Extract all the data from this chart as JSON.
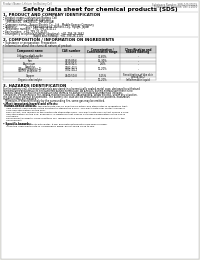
{
  "background_color": "#e8e8e4",
  "page_bg": "#ffffff",
  "header_left": "Product Name: Lithium Ion Battery Cell",
  "header_right_line1": "Substance Number: SBN-049-00019",
  "header_right_line2": "Established / Revision: Dec.1.2010",
  "title": "Safety data sheet for chemical products (SDS)",
  "section1_title": "1. PRODUCT AND COMPANY IDENTIFICATION",
  "section1_lines": [
    "• Product name: Lithium Ion Battery Cell",
    "• Product code: Cylindrical-type cell",
    "   (IHR18650U, IHR18650L, IHR18650A)",
    "• Company name:   Sanyo Electric Co., Ltd., Mobile Energy Company",
    "• Address:          2001 Kamitomisawa, Sumoto-City, Hyogo, Japan",
    "• Telephone number:  +81-799-26-4111",
    "• Fax number:  +81-799-26-4129",
    "• Emergency telephone number (daytime): +81-799-26-2662",
    "                                  (Night and holiday): +81-799-26-2101"
  ],
  "section2_title": "2. COMPOSITION / INFORMATION ON INGREDIENTS",
  "section2_intro": "• Substance or preparation: Preparation",
  "section2_sub": "• Information about the chemical nature of product:",
  "table_headers": [
    "Component name",
    "CAS number",
    "Concentration /\nConcentration range",
    "Classification and\nhazard labeling"
  ],
  "table_rows": [
    [
      "Lithium cobalt oxide\n(LiMn/Co/Ni/O4)",
      "-",
      "30-60%",
      "-"
    ],
    [
      "Iron",
      "7439-89-6",
      "15-30%",
      "-"
    ],
    [
      "Aluminum",
      "7429-90-5",
      "2-6%",
      "-"
    ],
    [
      "Graphite\n(Mixed graphite-1)\n(AI/Mn graphite-1)",
      "7782-42-5\n7782-44-2",
      "10-20%",
      "-"
    ],
    [
      "Copper",
      "7440-50-8",
      "5-15%",
      "Sensitization of the skin\ngroup No.2"
    ],
    [
      "Organic electrolyte",
      "-",
      "10-20%",
      "Inflammable liquid"
    ]
  ],
  "section3_title": "3. HAZARDS IDENTIFICATION",
  "section3_para1_lines": [
    "For the battery cell, chemical materials are stored in a hermetically sealed metal case, designed to withstand",
    "temperatures and pressures encountered during normal use. As a result, during normal use, there is no",
    "physical danger of ignition or explosion and there is no danger of hazardous materials leakage.",
    "   However, if exposed to a fire, added mechanical shocks, decomposed, under electric, under dry situation,",
    "the gas maybe cannot be operated. The battery cell case will be breached of fire-patterns, hazardous",
    "materials may be released.",
    "   Moreover, if heated strongly by the surrounding fire, some gas may be emitted."
  ],
  "section3_hazard_title": "• Most important hazard and effects:",
  "section3_hazard_lines": [
    "Human health effects:",
    "   Inhalation: The release of the electrolyte has an anesthesia action and stimulates in respiratory tract.",
    "   Skin contact: The release of the electrolyte stimulates a skin. The electrolyte skin contact causes a",
    "   sore and stimulation on the skin.",
    "   Eye contact: The release of the electrolyte stimulates eyes. The electrolyte eye contact causes a sore",
    "   and stimulation on the eye. Especially, a substance that causes a strong inflammation of the eye is",
    "   contained.",
    "   Environmental effects: Since a battery cell remains in the environment, do not throw out it into the",
    "   environment."
  ],
  "section3_specific": "• Specific hazards:",
  "section3_specific_lines": [
    "   If the electrolyte contacts with water, it will generate detrimental hydrogen fluoride.",
    "   Since the used electrolyte is inflammable liquid, do not bring close to fire."
  ]
}
